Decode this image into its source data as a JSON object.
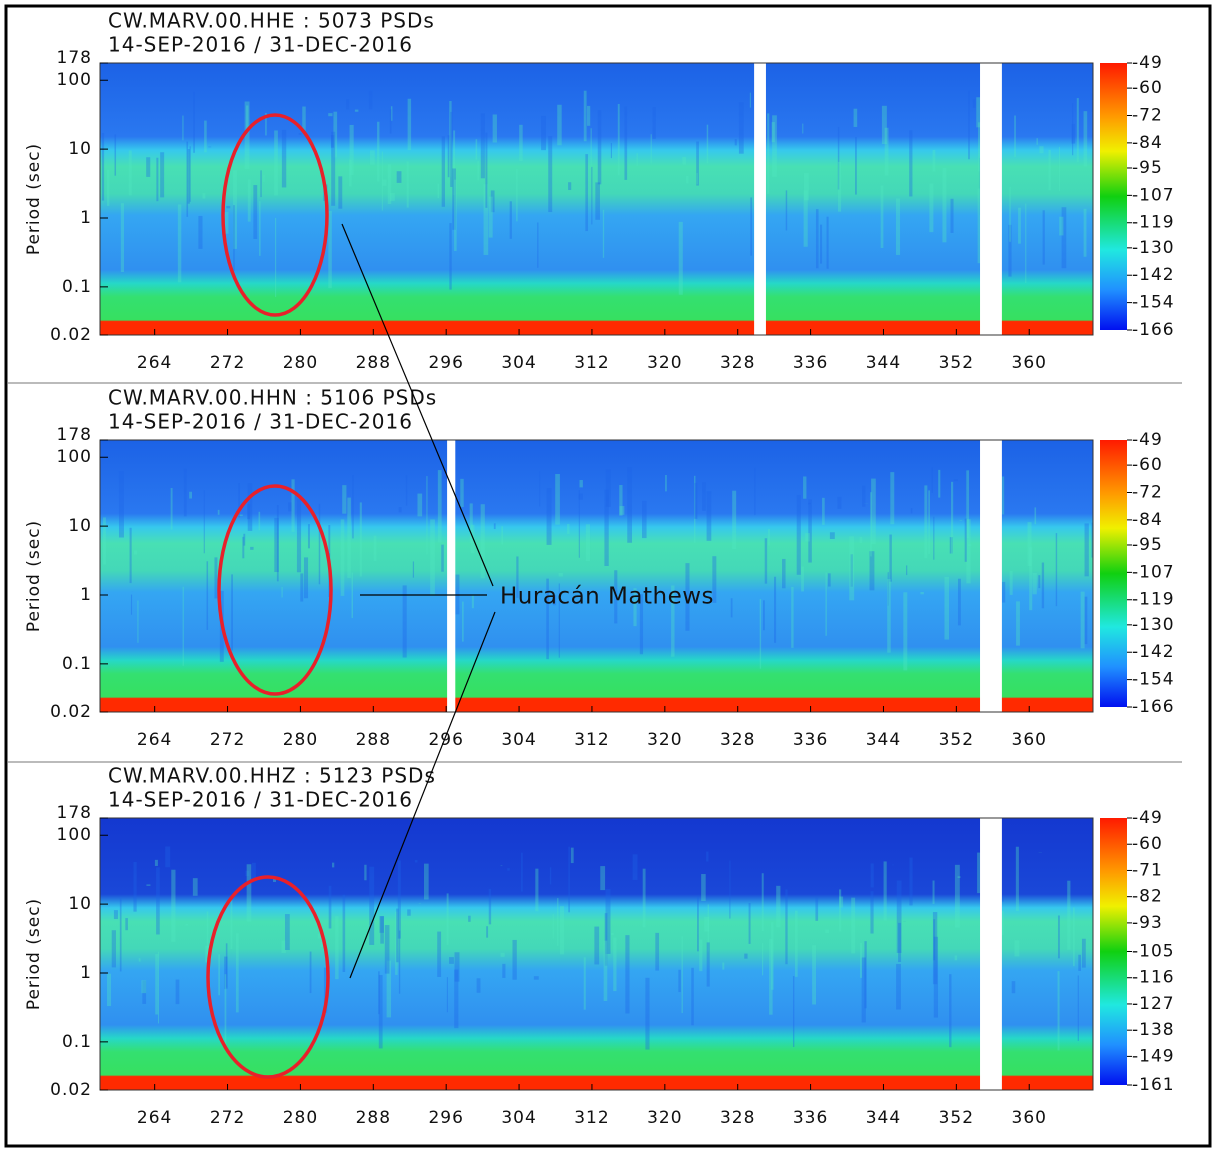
{
  "chart_data": [
    {
      "type": "heatmap",
      "title": "CW.MARV.00.HHE : 5073 PSDs",
      "subtitle": "14-SEP-2016 / 31-DEC-2016",
      "y_label": "Period (sec)",
      "xlim": [
        258,
        367
      ],
      "xticks": [
        264,
        272,
        280,
        288,
        296,
        304,
        312,
        320,
        328,
        336,
        344,
        352,
        360
      ],
      "ylim": [
        0.02,
        178
      ],
      "yticks": [
        0.02,
        0.1,
        1,
        10,
        100,
        178
      ],
      "y_log": true,
      "colorbar_lim": [
        -166,
        -49
      ],
      "colorbar_ticks": [
        -49,
        -60,
        -72,
        -84,
        -95,
        -107,
        -119,
        -130,
        -142,
        -154,
        -166
      ],
      "gaps": [
        [
          329.8,
          331.1
        ],
        [
          354.6,
          357
        ]
      ]
    },
    {
      "type": "heatmap",
      "title": "CW.MARV.00.HHN : 5106 PSDs",
      "subtitle": "14-SEP-2016 / 31-DEC-2016",
      "y_label": "Period (sec)",
      "xlim": [
        258,
        367
      ],
      "xticks": [
        264,
        272,
        280,
        288,
        296,
        304,
        312,
        320,
        328,
        336,
        344,
        352,
        360
      ],
      "ylim": [
        0.02,
        178
      ],
      "yticks": [
        0.02,
        0.1,
        1,
        10,
        100,
        178
      ],
      "y_log": true,
      "colorbar_lim": [
        -166,
        -49
      ],
      "colorbar_ticks": [
        -49,
        -60,
        -72,
        -84,
        -95,
        -107,
        -119,
        -130,
        -142,
        -154,
        -166
      ],
      "gaps": [
        [
          296.1,
          297
        ],
        [
          354.6,
          357
        ]
      ]
    },
    {
      "type": "heatmap",
      "title": "CW.MARV.00.HHZ : 5123 PSDs",
      "subtitle": "14-SEP-2016 / 31-DEC-2016",
      "y_label": "Period (sec)",
      "xlim": [
        258,
        367
      ],
      "xticks": [
        264,
        272,
        280,
        288,
        296,
        304,
        312,
        320,
        328,
        336,
        344,
        352,
        360
      ],
      "ylim": [
        0.02,
        178
      ],
      "yticks": [
        0.02,
        0.1,
        1,
        10,
        100,
        178
      ],
      "y_log": true,
      "colorbar_lim": [
        -161,
        -49
      ],
      "colorbar_ticks": [
        -49,
        -60,
        -71,
        -82,
        -93,
        -105,
        -116,
        -127,
        -138,
        -149,
        -161
      ],
      "gaps": [
        [
          354.6,
          357
        ]
      ]
    }
  ],
  "annotation": "Huracán Mathews"
}
